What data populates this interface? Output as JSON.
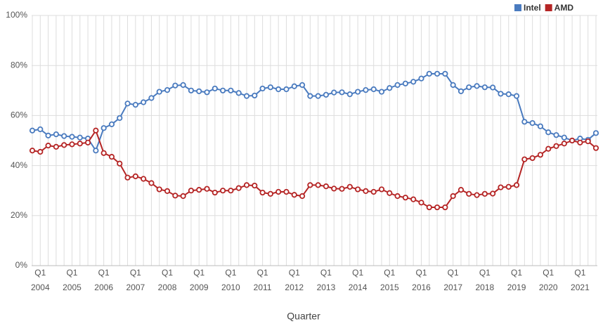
{
  "chart_data": {
    "type": "line",
    "x_label": "Quarter",
    "categories": [
      null,
      [
        "Q1",
        "2004"
      ],
      null,
      null,
      null,
      [
        "Q1",
        "2005"
      ],
      null,
      null,
      null,
      [
        "Q1",
        "2006"
      ],
      null,
      null,
      null,
      [
        "Q1",
        "2007"
      ],
      null,
      null,
      null,
      [
        "Q1",
        "2008"
      ],
      null,
      null,
      null,
      [
        "Q1",
        "2009"
      ],
      null,
      null,
      null,
      [
        "Q1",
        "2010"
      ],
      null,
      null,
      null,
      [
        "Q1",
        "2011"
      ],
      null,
      null,
      null,
      [
        "Q1",
        "2012"
      ],
      null,
      null,
      null,
      [
        "Q1",
        "2013"
      ],
      null,
      null,
      null,
      [
        "Q1",
        "2014"
      ],
      null,
      null,
      null,
      [
        "Q1",
        "2015"
      ],
      null,
      null,
      null,
      [
        "Q1",
        "2016"
      ],
      null,
      null,
      null,
      [
        "Q1",
        "2017"
      ],
      null,
      null,
      null,
      [
        "Q1",
        "2018"
      ],
      null,
      null,
      null,
      [
        "Q1",
        "2019"
      ],
      null,
      null,
      null,
      [
        "Q1",
        "2020"
      ],
      null,
      null,
      null,
      [
        "Q1",
        "2021"
      ],
      null,
      null
    ],
    "series": [
      {
        "name": "Intel",
        "color": "#4a7bbf",
        "values": [
          54,
          54.5,
          52,
          52.5,
          51.8,
          51.5,
          51.2,
          50.8,
          46,
          55,
          56.5,
          59,
          64.8,
          64.3,
          65.3,
          67,
          69.5,
          70.2,
          72,
          72.2,
          70,
          69.7,
          69.3,
          70.8,
          70,
          70,
          69,
          67.8,
          68,
          70.8,
          71.3,
          70.5,
          70.5,
          71.7,
          72.2,
          67.8,
          67.8,
          68.3,
          69.2,
          69.3,
          68.5,
          69.5,
          70.2,
          70.5,
          69.5,
          71,
          72.2,
          72.8,
          73.5,
          74.8,
          76.7,
          76.7,
          76.7,
          72.2,
          69.7,
          71.3,
          71.8,
          71.3,
          71.2,
          68.7,
          68.5,
          67.8,
          57.5,
          57,
          55.7,
          53.3,
          52.2,
          51.2,
          50,
          50.8,
          50.3,
          53
        ]
      },
      {
        "name": "AMD",
        "color": "#b52525",
        "values": [
          46,
          45.5,
          48,
          47.5,
          48.2,
          48.5,
          48.8,
          49.2,
          54,
          45,
          43.5,
          40.8,
          35.2,
          35.7,
          34.7,
          33,
          30.5,
          29.8,
          28,
          27.8,
          30,
          30.3,
          30.7,
          29.2,
          30,
          30,
          31,
          32.2,
          32,
          29.2,
          28.7,
          29.5,
          29.5,
          28.3,
          27.8,
          32.2,
          32.2,
          31.7,
          30.8,
          30.7,
          31.5,
          30.5,
          29.8,
          29.5,
          30.5,
          29,
          27.8,
          27.2,
          26.5,
          25.2,
          23.3,
          23.3,
          23.3,
          27.8,
          30.3,
          28.7,
          28.2,
          28.7,
          28.8,
          31.3,
          31.5,
          32.2,
          42.5,
          43,
          44.3,
          46.7,
          47.8,
          48.8,
          50,
          49.2,
          49.7,
          47
        ]
      }
    ],
    "ylim": [
      0,
      100
    ],
    "yticks": [
      {
        "value": 0,
        "label": "0%"
      },
      {
        "value": 20,
        "label": "20%"
      },
      {
        "value": 40,
        "label": "40%"
      },
      {
        "value": 60,
        "label": "60%"
      },
      {
        "value": 80,
        "label": "80%"
      },
      {
        "value": 100,
        "label": "100%"
      }
    ],
    "grid": true,
    "legend": "top-right"
  }
}
